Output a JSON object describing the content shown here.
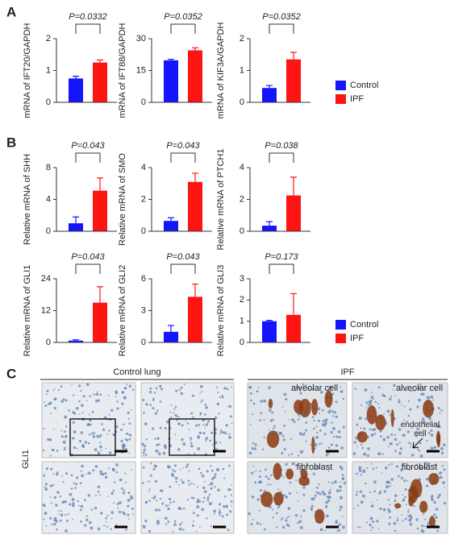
{
  "panel_labels": [
    "A",
    "B",
    "C"
  ],
  "chart_data": [
    {
      "type": "bar",
      "ylabel": "mRNA of IFT20/GAPDH",
      "annotation": "P=0.0332",
      "categories": [
        null
      ],
      "ylim": [
        0,
        2
      ],
      "yticks": [
        0,
        1,
        2
      ],
      "legend": true,
      "series": [
        {
          "name": "Control",
          "color": "#1414ff",
          "values": [
            0.75
          ],
          "errors": [
            0.07
          ]
        },
        {
          "name": "IPF",
          "color": "#ff1414",
          "values": [
            1.25
          ],
          "errors": [
            0.08
          ]
        }
      ]
    },
    {
      "type": "bar",
      "ylabel": "mRNA of IFT88/GAPDH",
      "annotation": "P=0.0352",
      "categories": [
        null
      ],
      "ylim": [
        0,
        30
      ],
      "yticks": [
        0,
        15,
        30
      ],
      "series": [
        {
          "name": "Control",
          "color": "#1414ff",
          "values": [
            19.8
          ],
          "errors": [
            0.5
          ]
        },
        {
          "name": "IPF",
          "color": "#ff1414",
          "values": [
            24.5
          ],
          "errors": [
            1.2
          ]
        }
      ]
    },
    {
      "type": "bar",
      "ylabel": "mRNA of KIF3A/GAPDH",
      "annotation": "P=0.0352",
      "categories": [
        null
      ],
      "ylim": [
        0,
        2
      ],
      "yticks": [
        0,
        1,
        2
      ],
      "series": [
        {
          "name": "Control",
          "color": "#1414ff",
          "values": [
            0.45
          ],
          "errors": [
            0.08
          ]
        },
        {
          "name": "IPF",
          "color": "#ff1414",
          "values": [
            1.35
          ],
          "errors": [
            0.22
          ]
        }
      ]
    },
    {
      "type": "bar",
      "ylabel": "Relative mRNA of SHH",
      "annotation": "P=0.043",
      "categories": [
        null
      ],
      "ylim": [
        0,
        8
      ],
      "yticks": [
        0,
        4,
        8
      ],
      "series": [
        {
          "name": "Control",
          "color": "#1414ff",
          "values": [
            1.0
          ],
          "errors": [
            0.8
          ]
        },
        {
          "name": "IPF",
          "color": "#ff1414",
          "values": [
            5.1
          ],
          "errors": [
            1.6
          ]
        }
      ]
    },
    {
      "type": "bar",
      "ylabel": "Relative mRNA of SMO",
      "annotation": "P=0.043",
      "categories": [
        null
      ],
      "ylim": [
        0,
        4
      ],
      "yticks": [
        0,
        2,
        4
      ],
      "series": [
        {
          "name": "Control",
          "color": "#1414ff",
          "values": [
            0.65
          ],
          "errors": [
            0.2
          ]
        },
        {
          "name": "IPF",
          "color": "#ff1414",
          "values": [
            3.1
          ],
          "errors": [
            0.55
          ]
        }
      ]
    },
    {
      "type": "bar",
      "ylabel": "Relative mRNA of PTCH1",
      "annotation": "P=0.038",
      "categories": [
        null
      ],
      "ylim": [
        0,
        4
      ],
      "yticks": [
        0,
        2,
        4
      ],
      "series": [
        {
          "name": "Control",
          "color": "#1414ff",
          "values": [
            0.35
          ],
          "errors": [
            0.25
          ]
        },
        {
          "name": "IPF",
          "color": "#ff1414",
          "values": [
            2.25
          ],
          "errors": [
            1.15
          ]
        }
      ]
    },
    {
      "type": "bar",
      "ylabel": "Relative mRNA of GLI1",
      "annotation": "P=0.043",
      "categories": [
        null
      ],
      "ylim": [
        0,
        24
      ],
      "yticks": [
        0,
        12,
        24
      ],
      "series": [
        {
          "name": "Control",
          "color": "#1414ff",
          "values": [
            0.7
          ],
          "errors": [
            0.3
          ]
        },
        {
          "name": "IPF",
          "color": "#ff1414",
          "values": [
            15
          ],
          "errors": [
            6
          ]
        }
      ]
    },
    {
      "type": "bar",
      "ylabel": "Relative mRNA of GLI2",
      "annotation": "P=0.043",
      "categories": [
        null
      ],
      "ylim": [
        0,
        6
      ],
      "yticks": [
        0,
        3,
        6
      ],
      "series": [
        {
          "name": "Control",
          "color": "#1414ff",
          "values": [
            1.0
          ],
          "errors": [
            0.6
          ]
        },
        {
          "name": "IPF",
          "color": "#ff1414",
          "values": [
            4.3
          ],
          "errors": [
            1.2
          ]
        }
      ]
    },
    {
      "type": "bar",
      "ylabel": "Relative mRNA of GLI3",
      "annotation": "P=0.173",
      "categories": [
        null
      ],
      "ylim": [
        0,
        3
      ],
      "yticks": [
        0,
        1,
        2,
        3
      ],
      "legend": true,
      "series": [
        {
          "name": "Control",
          "color": "#1414ff",
          "values": [
            1.0
          ],
          "errors": [
            0.04
          ]
        },
        {
          "name": "IPF",
          "color": "#ff1414",
          "values": [
            1.3
          ],
          "errors": [
            1.0
          ]
        }
      ]
    }
  ],
  "images": {
    "groups": [
      "Control lung",
      "IPF"
    ],
    "row_label": "GLI1",
    "labels": [
      "alveolar cell",
      "alveolar cell",
      "endothelial cell",
      "fibroblast",
      "fibroblast"
    ]
  }
}
